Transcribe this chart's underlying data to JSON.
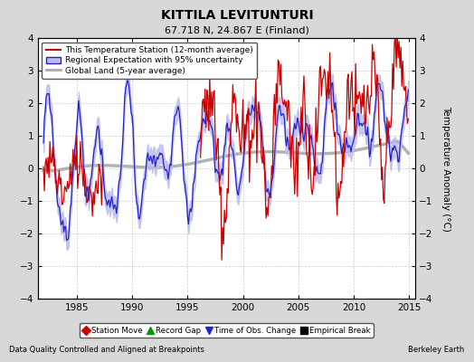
{
  "title": "KITTILA LEVITUNTURI",
  "subtitle": "67.718 N, 24.867 E (Finland)",
  "xlabel_left": "Data Quality Controlled and Aligned at Breakpoints",
  "xlabel_right": "Berkeley Earth",
  "ylabel": "Temperature Anomaly (°C)",
  "xlim": [
    1981.5,
    2015.5
  ],
  "ylim": [
    -4,
    4
  ],
  "yticks": [
    -4,
    -3,
    -2,
    -1,
    0,
    1,
    2,
    3,
    4
  ],
  "xticks": [
    1985,
    1990,
    1995,
    2000,
    2005,
    2010,
    2015
  ],
  "fig_bg_color": "#d8d8d8",
  "plot_bg_color": "#ffffff",
  "station_color": "#cc0000",
  "regional_color": "#2222cc",
  "regional_fill_color": "#bbbbee",
  "global_color": "#aaaaaa",
  "legend_entries": [
    "This Temperature Station (12-month average)",
    "Regional Expectation with 95% uncertainty",
    "Global Land (5-year average)"
  ],
  "marker_legend": [
    {
      "label": "Station Move",
      "color": "#cc0000",
      "marker": "D"
    },
    {
      "label": "Record Gap",
      "color": "#009900",
      "marker": "^"
    },
    {
      "label": "Time of Obs. Change",
      "color": "#2222cc",
      "marker": "v"
    },
    {
      "label": "Empirical Break",
      "color": "#000000",
      "marker": "s"
    }
  ]
}
